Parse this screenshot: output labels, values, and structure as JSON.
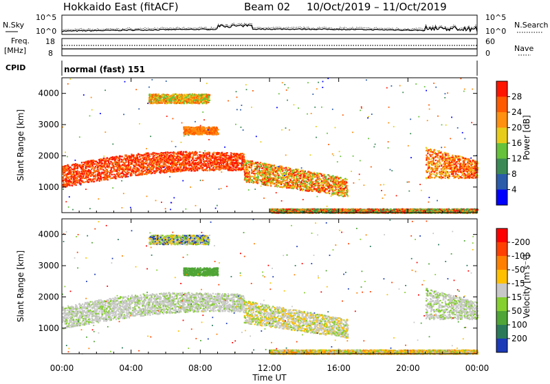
{
  "header": {
    "radar": "Hokkaido East (fitACF)",
    "beam": "Beam 02",
    "dates": "10/Oct/2019 – 11/Oct/2019"
  },
  "panels": {
    "nsky_label": "N.Sky",
    "nsearch_label": "N.Search",
    "freq_label_1": "Freq.",
    "freq_label_2": "[MHz]",
    "nave_label": "Nave",
    "cpid_label": "CPID",
    "cpid_value": "normal (fast) 151",
    "nsky_ticks": [
      "10^5",
      "10^0"
    ],
    "nsearch_ticks": [
      "10^5",
      "10^0"
    ],
    "freq_ticks": [
      "18",
      "8"
    ],
    "nave_ticks": [
      "60",
      "0"
    ]
  },
  "chart_data": [
    {
      "type": "heatmap",
      "title": "",
      "ylabel": "Slant Range [km]",
      "xlabel": "Time UT",
      "ylim": [
        180,
        4500
      ],
      "yticks": [
        1000,
        2000,
        3000,
        4000
      ],
      "xticks": [
        "00:00",
        "04:00",
        "08:00",
        "12:00",
        "16:00",
        "20:00",
        "00:00"
      ],
      "colorbar_label": "Power [dB]",
      "colorbar_ticks": [
        "4",
        "8",
        "12",
        "16",
        "20",
        "24",
        "28"
      ],
      "colors": [
        "#0000ff",
        "#2a5caa",
        "#3b8a55",
        "#66c23a",
        "#e8cc1a",
        "#ff9010",
        "#ff5a00",
        "#ff1500"
      ]
    },
    {
      "type": "heatmap",
      "title": "",
      "ylabel": "Slant Range [km]",
      "xlabel": "Time UT",
      "ylim": [
        180,
        4500
      ],
      "yticks": [
        1000,
        2000,
        3000,
        4000
      ],
      "xticks": [
        "00:00",
        "04:00",
        "08:00",
        "12:00",
        "16:00",
        "20:00",
        "00:00"
      ],
      "colorbar_label": "Velocity [m s⁻¹]",
      "colorbar_ticks": [
        "200",
        "100",
        "50",
        "15",
        "-15",
        "-50",
        "-100",
        "-200"
      ],
      "colors": [
        "#1a3ab8",
        "#2a7a5a",
        "#4fa535",
        "#85cf2f",
        "#c8c8c8",
        "#ffc000",
        "#ff8000",
        "#ff4000",
        "#ff0000"
      ]
    }
  ],
  "palette": {
    "ground": "#c0c0c0",
    "line": "#000000"
  }
}
